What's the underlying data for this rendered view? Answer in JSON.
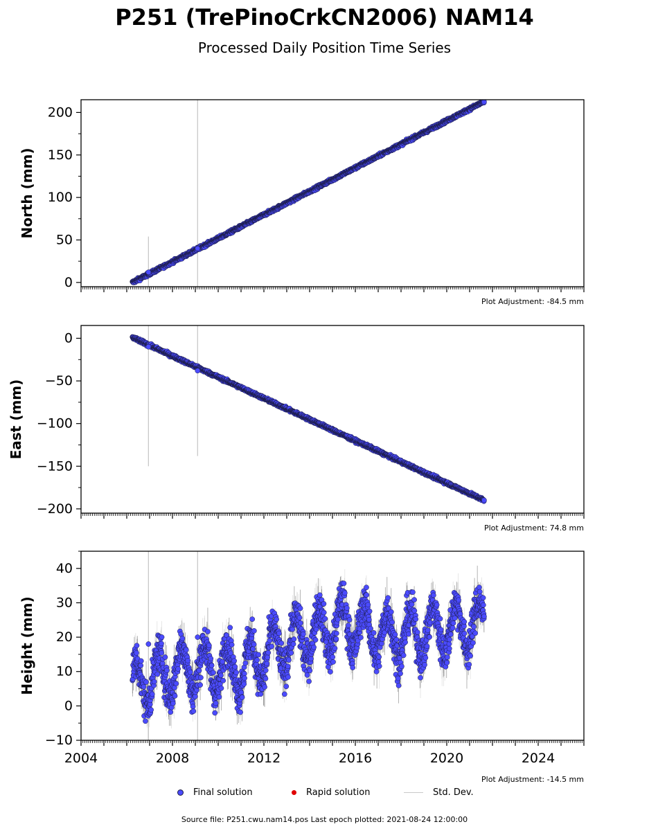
{
  "title": "P251 (TrePinoCrkCN2006) NAM14",
  "subtitle": "Processed Daily Position Time Series",
  "colors": {
    "final": "#4b4bff",
    "final_edge": "#1a1a40",
    "rapid": "#e00000",
    "stddev": "#c8c8c8"
  },
  "legend": {
    "final_label": "Final solution",
    "rapid_label": "Rapid solution",
    "stddev_label": "Std. Dev."
  },
  "footer": "Source file: P251.cwu.nam14.pos  Last epoch plotted: 2021-08-24 12:00:00",
  "chart_data": [
    {
      "type": "scatter",
      "ylabel": "North (mm)",
      "note": "Plot Adjustment: -84.5 mm",
      "xlim": [
        2004,
        2026
      ],
      "ylim": [
        -5,
        215
      ],
      "yticks": [
        0,
        50,
        100,
        150,
        200
      ],
      "start": [
        2006.25,
        0
      ],
      "end": [
        2021.64,
        213
      ],
      "noise": 1.3,
      "outliers": [
        [
          2006.95,
          12,
          42
        ],
        [
          2009.1,
          40,
          190
        ]
      ],
      "grid": false
    },
    {
      "type": "scatter",
      "ylabel": "East (mm)",
      "note": "Plot Adjustment: 74.8 mm",
      "xlim": [
        2004,
        2026
      ],
      "ylim": [
        -205,
        15
      ],
      "yticks": [
        -200,
        -150,
        -100,
        -50,
        0
      ],
      "start": [
        2006.25,
        1
      ],
      "end": [
        2021.64,
        -190
      ],
      "noise": 1.3,
      "outliers": [
        [
          2006.95,
          -10,
          140
        ],
        [
          2009.1,
          -38,
          100
        ]
      ],
      "grid": false
    },
    {
      "type": "scatter",
      "ylabel": "Height (mm)",
      "note": "Plot Adjustment: -14.5 mm",
      "xlim": [
        2004,
        2026
      ],
      "ylim": [
        -10,
        45
      ],
      "yticks": [
        -10,
        0,
        10,
        20,
        30,
        40
      ],
      "xticks": [
        2004,
        2008,
        2012,
        2016,
        2020,
        2024
      ],
      "start": [
        2006.25,
        6
      ],
      "end": [
        2021.64,
        24
      ],
      "trend_points": [
        [
          2006.25,
          6
        ],
        [
          2008.5,
          11
        ],
        [
          2011.0,
          11
        ],
        [
          2013.0,
          18
        ],
        [
          2015.5,
          24
        ],
        [
          2017.5,
          20
        ],
        [
          2021.64,
          24
        ]
      ],
      "seasonal_amplitude": 7,
      "noise": 4,
      "outliers": [
        [
          2006.95,
          18,
          48
        ],
        [
          2009.1,
          20,
          40
        ]
      ],
      "grid": false
    }
  ]
}
